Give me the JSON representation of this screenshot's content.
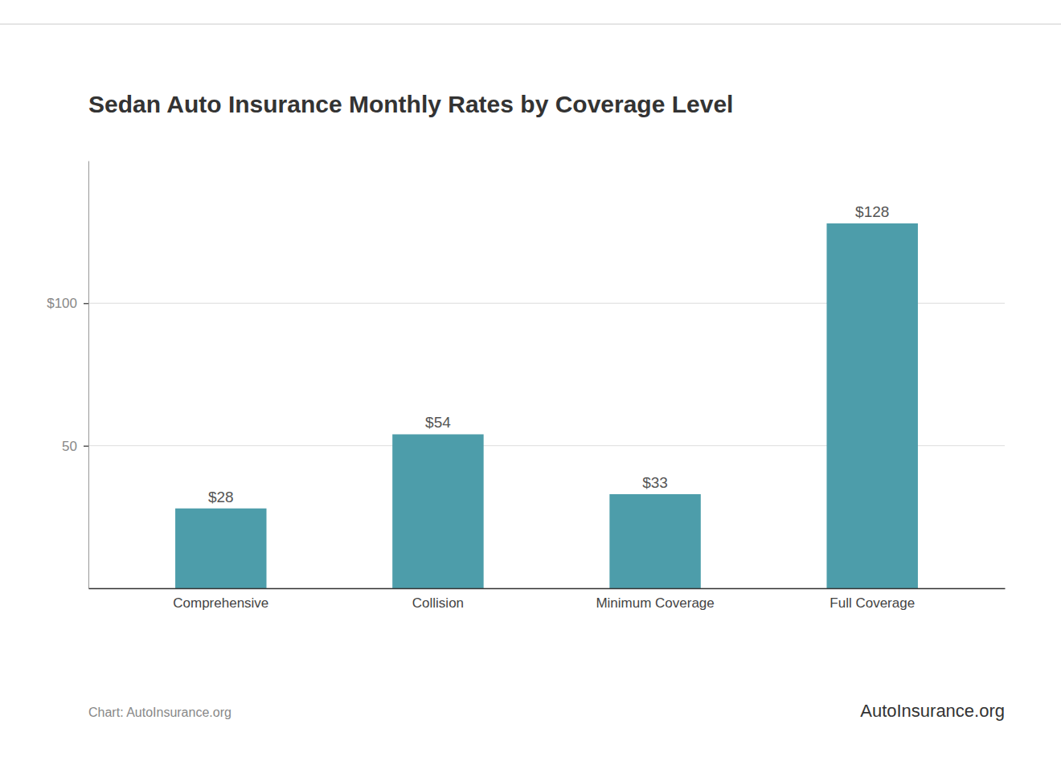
{
  "chart_data": {
    "type": "bar",
    "title": "Sedan Auto Insurance Monthly Rates by Coverage Level",
    "categories": [
      "Comprehensive",
      "Collision",
      "Minimum Coverage",
      "Full Coverage"
    ],
    "values": [
      28,
      54,
      33,
      128
    ],
    "value_labels": [
      "$28",
      "$54",
      "$33",
      "$128"
    ],
    "data_labels": true,
    "color": "#4d9daa",
    "ylim": [
      0,
      150
    ],
    "yticks": [
      50,
      {
        "value": 100,
        "label": "$100"
      }
    ],
    "grid": true,
    "annotations": [
      "Chart: AutoInsurance.org",
      "AutoInsurance.org"
    ]
  }
}
